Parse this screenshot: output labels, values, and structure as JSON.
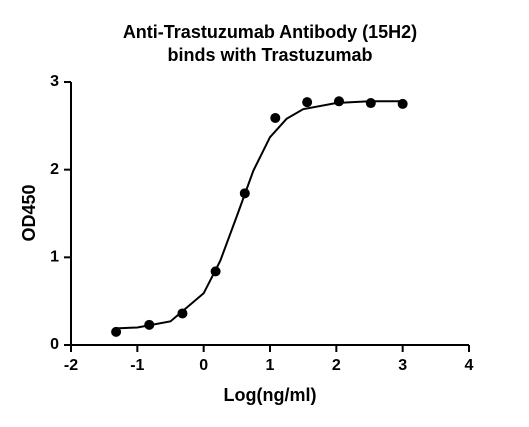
{
  "chart_data": {
    "type": "scatter",
    "title": [
      "Anti-Trastuzumab Antibody (15H2)",
      "binds with Trastuzumab"
    ],
    "x_label": "Log(ng/ml)",
    "y_label": "OD450",
    "series": [
      {
        "style": "markers",
        "color": "#000000",
        "x": [
          -1.32,
          -0.82,
          -0.32,
          0.18,
          0.62,
          1.08,
          1.56,
          2.04,
          2.52,
          3.0
        ],
        "values": [
          0.15,
          0.23,
          0.36,
          0.84,
          1.73,
          2.59,
          2.77,
          2.78,
          2.76,
          2.75
        ]
      },
      {
        "style": "line",
        "color": "#000000",
        "x": [
          -1.32,
          -1,
          -0.5,
          0,
          0.25,
          0.5,
          0.75,
          1,
          1.25,
          1.5,
          2,
          2.5,
          3.0
        ],
        "values": [
          0.19,
          0.2,
          0.27,
          0.59,
          0.96,
          1.47,
          1.99,
          2.37,
          2.58,
          2.69,
          2.76,
          2.78,
          2.78
        ]
      }
    ],
    "xlim": [
      -2,
      4
    ],
    "xticks": [
      -2,
      -1,
      0,
      1,
      2,
      3,
      4
    ],
    "ylim": [
      0,
      3
    ],
    "yticks": [
      0,
      1,
      2,
      3
    ],
    "grid": false
  }
}
